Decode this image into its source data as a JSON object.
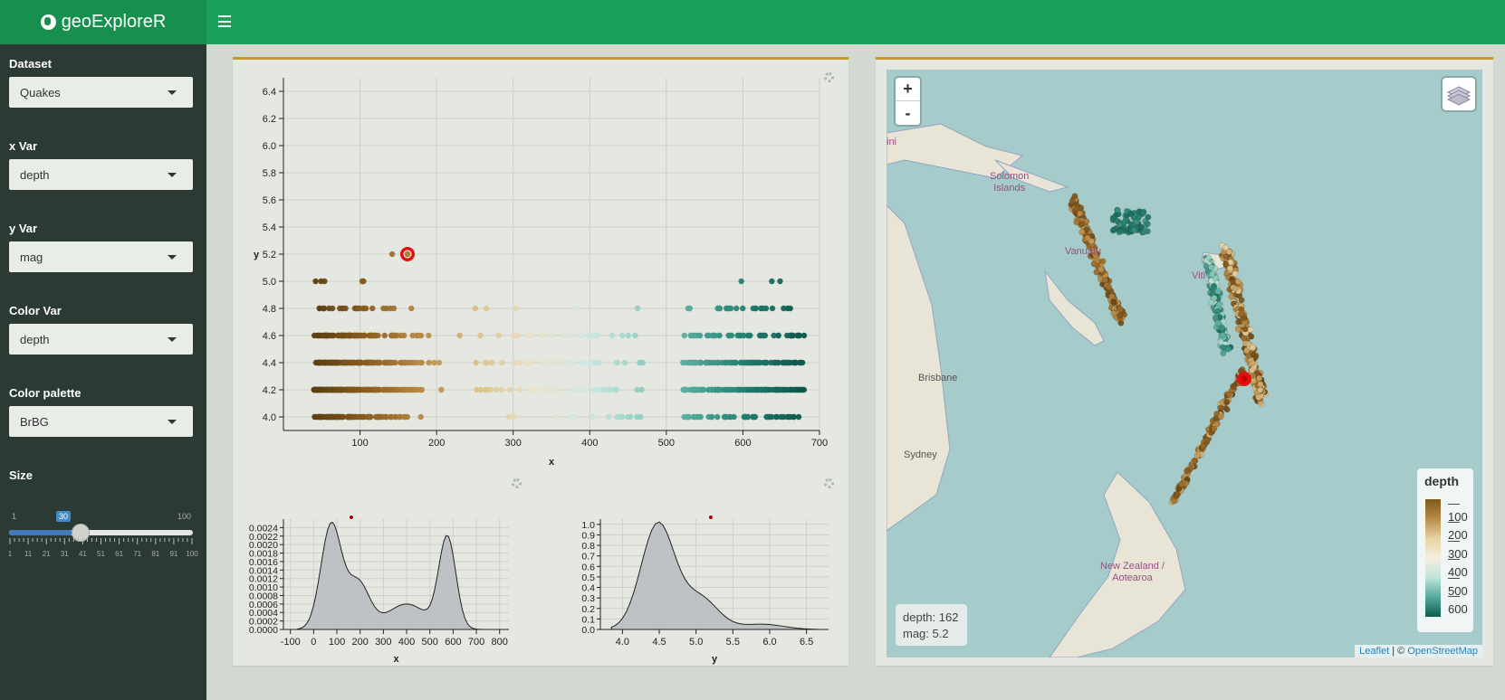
{
  "app": {
    "title": "geoExploreR"
  },
  "sidebar": {
    "dataset": {
      "label": "Dataset",
      "value": "Quakes"
    },
    "xvar": {
      "label": "x Var",
      "value": "depth"
    },
    "yvar": {
      "label": "y Var",
      "value": "mag"
    },
    "colorvar": {
      "label": "Color Var",
      "value": "depth"
    },
    "palette": {
      "label": "Color palette",
      "value": "BrBG"
    },
    "size": {
      "label": "Size",
      "min": "1",
      "max": "100",
      "value": "30",
      "ticks": [
        "1",
        "11",
        "21",
        "31",
        "41",
        "51",
        "61",
        "71",
        "81",
        "91",
        "100"
      ]
    }
  },
  "scatter": {
    "xlabel": "x",
    "ylabel": "y",
    "xticks": [
      "100",
      "200",
      "300",
      "400",
      "500",
      "600",
      "700"
    ],
    "yticks": [
      "4.0",
      "4.2",
      "4.4",
      "4.6",
      "4.8",
      "5.0",
      "5.2",
      "5.4",
      "5.6",
      "5.8",
      "6.0",
      "6.2",
      "6.4"
    ],
    "highlight": {
      "x": 162,
      "y": 5.2
    }
  },
  "density_x": {
    "xlabel": "x",
    "xticks": [
      "-100",
      "0",
      "100",
      "200",
      "300",
      "400",
      "500",
      "600",
      "700",
      "800"
    ],
    "yticks": [
      "0.0000",
      "0.0002",
      "0.0004",
      "0.0006",
      "0.0008",
      "0.0010",
      "0.0012",
      "0.0014",
      "0.0016",
      "0.0018",
      "0.0020",
      "0.0022",
      "0.0024"
    ]
  },
  "density_y": {
    "xlabel": "y",
    "xticks": [
      "4.0",
      "4.5",
      "5.0",
      "5.5",
      "6.0",
      "6.5"
    ],
    "yticks": [
      "0.0",
      "0.1",
      "0.2",
      "0.3",
      "0.4",
      "0.5",
      "0.6",
      "0.7",
      "0.8",
      "0.9",
      "1.0"
    ]
  },
  "map": {
    "zoom_in": "+",
    "zoom_out": "-",
    "labels": {
      "solomon": "Solomon\nIslands",
      "vanuatu": "Vanuatu",
      "fiji": "Viti",
      "brisbane": "Brisbane",
      "sydney": "Sydney",
      "nz": "New Zealand /\nAotearoa",
      "edge": "ini"
    },
    "info": {
      "line1": "depth: 162",
      "line2": "mag: 5.2"
    },
    "legend": {
      "title": "depth",
      "values": [
        "100",
        "200",
        "300",
        "400",
        "500",
        "600"
      ]
    },
    "attribution": {
      "leaflet": "Leaflet",
      "sep": " | © ",
      "osm": "OpenStreetMap"
    }
  },
  "colors": {
    "topbar": "#1ba05a",
    "sidebar": "#2b3a33",
    "accent": "#c79a2f",
    "highlight": "#e01010"
  }
}
